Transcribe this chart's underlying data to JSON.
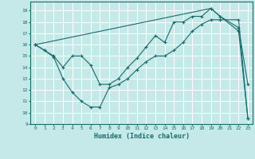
{
  "xlabel": "Humidex (Indice chaleur)",
  "background_color": "#c5e8e8",
  "grid_color": "#ffffff",
  "line_color": "#1a6b6b",
  "xlim": [
    -0.5,
    23.5
  ],
  "ylim": [
    9,
    19.8
  ],
  "yticks": [
    9,
    10,
    11,
    12,
    13,
    14,
    15,
    16,
    17,
    18,
    19
  ],
  "xticks": [
    0,
    1,
    2,
    3,
    4,
    5,
    6,
    7,
    8,
    9,
    10,
    11,
    12,
    13,
    14,
    15,
    16,
    17,
    18,
    19,
    20,
    21,
    22,
    23
  ],
  "series": [
    {
      "x": [
        0,
        1,
        2,
        3,
        4,
        5,
        6,
        7,
        8,
        9,
        10,
        11,
        12,
        13,
        14,
        15,
        16,
        17,
        18,
        19,
        20,
        22,
        23
      ],
      "y": [
        16.0,
        15.5,
        15.0,
        14.0,
        15.0,
        15.0,
        14.2,
        12.5,
        12.5,
        13.0,
        14.0,
        14.8,
        15.8,
        16.8,
        16.2,
        18.0,
        18.0,
        18.5,
        18.5,
        19.2,
        18.5,
        17.5,
        12.5
      ]
    },
    {
      "x": [
        0,
        1,
        2,
        3,
        4,
        5,
        6,
        7,
        8,
        9,
        10,
        11,
        12,
        13,
        14,
        15,
        16,
        17,
        18,
        19,
        20,
        22,
        23
      ],
      "y": [
        16.0,
        15.5,
        14.9,
        13.0,
        11.8,
        11.0,
        10.5,
        10.5,
        12.2,
        12.5,
        13.0,
        13.8,
        14.5,
        15.0,
        15.0,
        15.5,
        16.2,
        17.2,
        17.8,
        18.2,
        18.2,
        18.2,
        9.5
      ]
    },
    {
      "x": [
        0,
        19,
        20,
        22,
        23
      ],
      "y": [
        16.0,
        19.2,
        18.5,
        17.2,
        9.5
      ]
    }
  ]
}
